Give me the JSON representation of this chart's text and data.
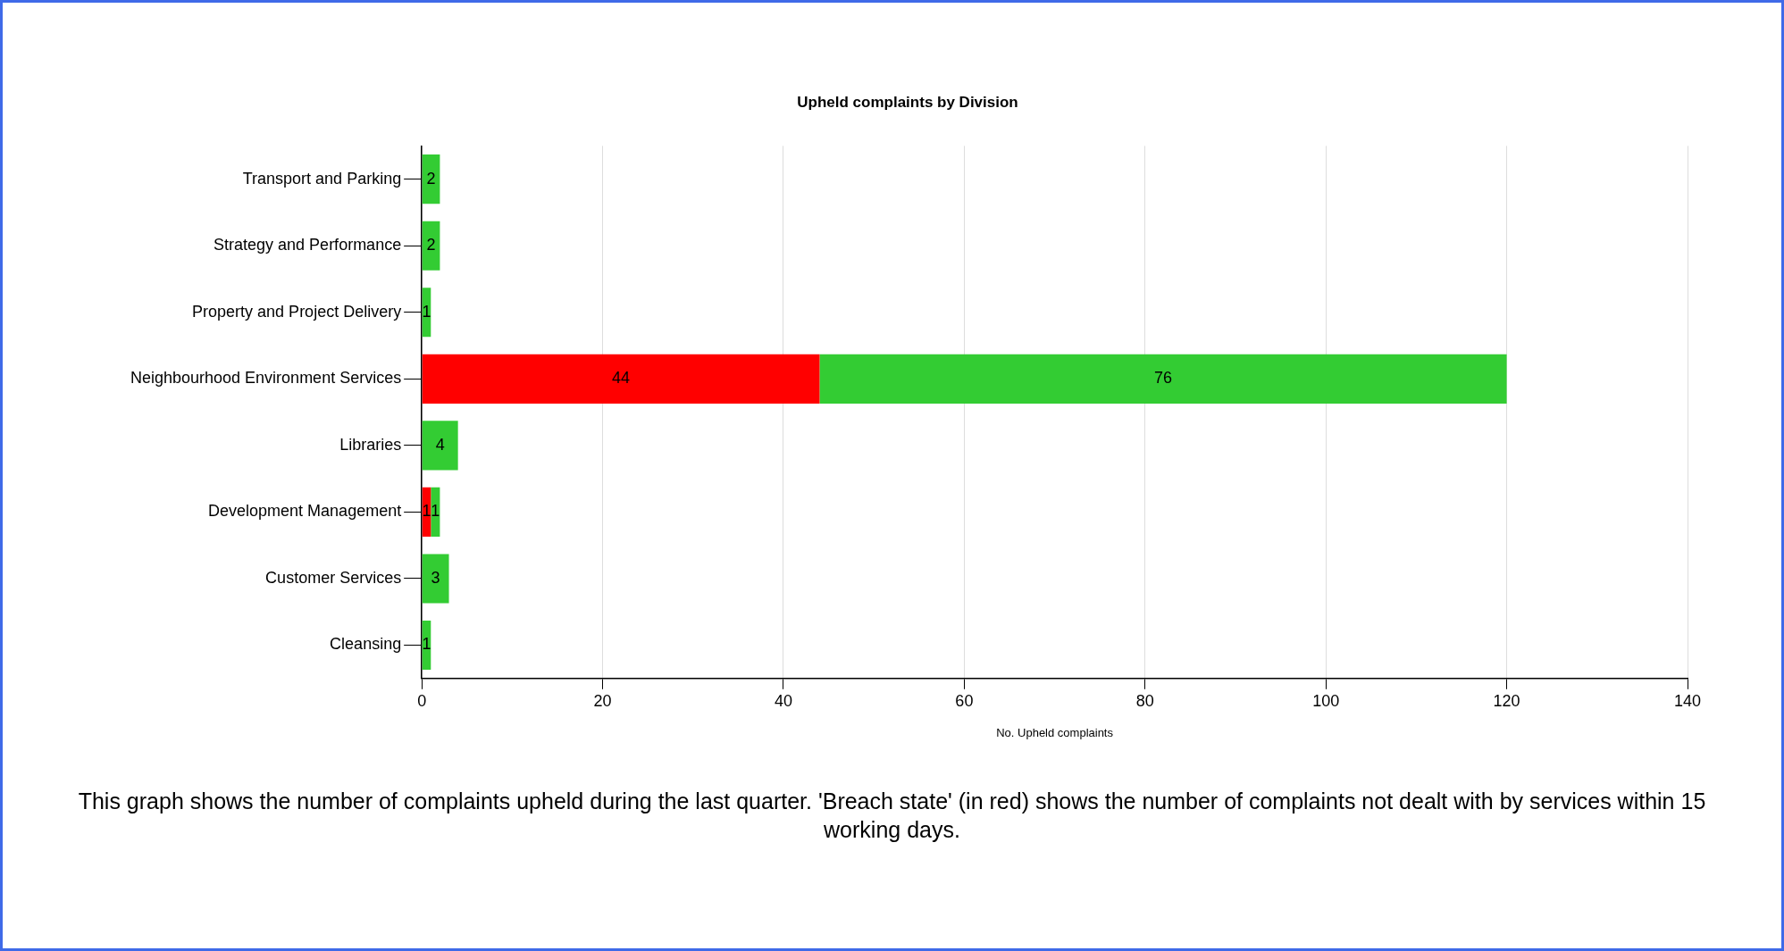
{
  "chart_data": {
    "type": "bar",
    "orientation": "horizontal",
    "stacked": true,
    "title": "Upheld complaints by Division",
    "xlabel": "No. Upheld complaints",
    "categories": [
      "Transport and Parking",
      "Strategy and Performance",
      "Property and Project Delivery",
      "Neighbourhood Environment Services",
      "Libraries",
      "Development Management",
      "Customer Services",
      "Cleansing"
    ],
    "series": [
      {
        "color": "#ff0000",
        "values": [
          null,
          null,
          null,
          44,
          null,
          1,
          null,
          null
        ]
      },
      {
        "color": "#33cc33",
        "values": [
          2,
          2,
          1,
          76,
          4,
          1,
          3,
          1
        ]
      }
    ],
    "xlim": [
      0,
      140
    ],
    "xticks": [
      0,
      20,
      40,
      60,
      80,
      100,
      120,
      140
    ],
    "grid": "x",
    "legend": false,
    "data_labels": true,
    "annotations": [
      "This graph shows the number of complaints upheld during the last quarter. 'Breach state' (in red) shows the number of complaints not dealt with by services within 15 working days."
    ]
  }
}
